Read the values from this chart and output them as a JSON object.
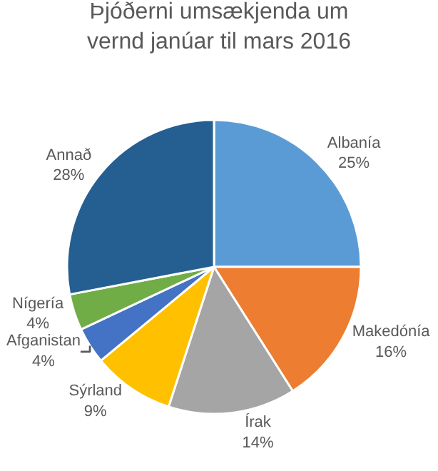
{
  "chart_data": {
    "type": "pie",
    "title": "Þjóðerni umsækjenda um vernd janúar til mars 2016",
    "categories": [
      "Albanía",
      "Makedónía",
      "Írak",
      "Sýrland",
      "Afganistan",
      "Nígería",
      "Annað"
    ],
    "values": [
      25,
      16,
      14,
      9,
      4,
      4,
      28
    ],
    "value_labels": [
      "25%",
      "16%",
      "14%",
      "9%",
      "4%",
      "4%",
      "28%"
    ],
    "colors": [
      "#5b9bd5",
      "#ed7d31",
      "#a5a5a5",
      "#ffc000",
      "#4472c4",
      "#70ad47",
      "#255e91"
    ],
    "legend": false
  }
}
